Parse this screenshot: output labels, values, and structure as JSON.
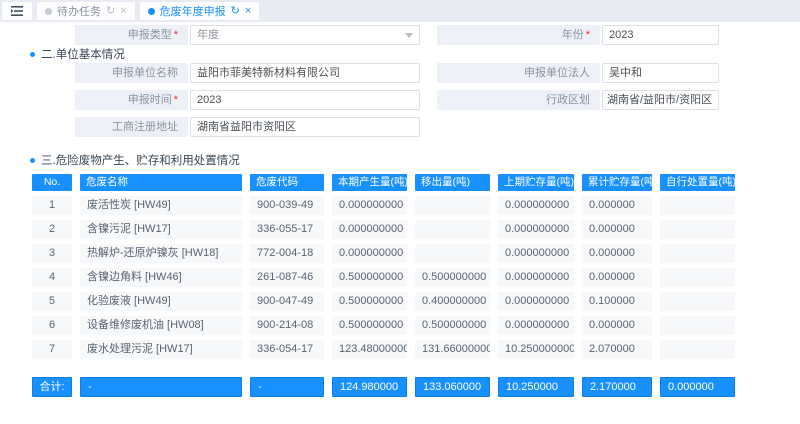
{
  "tabbar": {
    "menu_icon": "menu-fold-icon",
    "refresh_icon": "↻",
    "close_icon": "×",
    "tabs": [
      {
        "label": "待办任务",
        "active": false
      },
      {
        "label": "危废年度申报",
        "active": true
      }
    ]
  },
  "form": {
    "required_mark": "*",
    "declare_type": {
      "label": "申报类型",
      "value": "年度"
    },
    "year": {
      "label": "年份",
      "value": "2023"
    },
    "section2_title": "二.单位基本情况",
    "unit_name": {
      "label": "申报单位名称",
      "value": "益阳市菲美特新材料有限公司"
    },
    "legal_person": {
      "label": "申报单位法人",
      "value": "吴中和"
    },
    "declare_time": {
      "label": "申报时间",
      "value": "2023"
    },
    "admin_region": {
      "label": "行政区划",
      "value": "湖南省/益阳市/资阳区"
    },
    "registered_address": {
      "label": "工商注册地址",
      "value": "湖南省益阳市资阳区"
    },
    "section3_title": "三.危险废物产生、贮存和利用处置情况"
  },
  "table": {
    "columns": [
      "No.",
      "危废名称",
      "危废代码",
      "本期产生量(吨)",
      "移出量(吨)",
      "上期贮存量(吨)",
      "累计贮存量(吨)",
      "自行处置量(吨)"
    ],
    "rows": [
      [
        "1",
        "废活性炭 [HW49]",
        "900-039-49",
        "0.000000000",
        "",
        "0.000000000",
        "0.000000",
        ""
      ],
      [
        "2",
        "含镍污泥 [HW17]",
        "336-055-17",
        "0.000000000",
        "",
        "0.000000000",
        "0.000000",
        ""
      ],
      [
        "3",
        "热解炉-还原炉镍灰 [HW18]",
        "772-004-18",
        "0.000000000",
        "",
        "0.000000000",
        "0.000000",
        ""
      ],
      [
        "4",
        "含镍边角料 [HW46]",
        "261-087-46",
        "0.500000000",
        "0.500000000",
        "0.000000000",
        "0.000000",
        ""
      ],
      [
        "5",
        "化验废液 [HW49]",
        "900-047-49",
        "0.500000000",
        "0.400000000",
        "0.000000000",
        "0.100000",
        ""
      ],
      [
        "6",
        "设备维修废机油 [HW08]",
        "900-214-08",
        "0.500000000",
        "0.500000000",
        "0.000000000",
        "0.000000",
        ""
      ],
      [
        "7",
        "废水处理污泥 [HW17]",
        "336-054-17",
        "123.480000000",
        "131.660000000",
        "10.250000000",
        "2.070000",
        ""
      ]
    ],
    "total": [
      "合计:",
      "-",
      "-",
      "124.980000",
      "133.060000",
      "10.250000",
      "2.170000",
      "0.000000"
    ]
  },
  "colors": {
    "primary": "#1890ff",
    "header_bg": "#1890ff",
    "label_bg": "#edf0f6",
    "cell_bg": "#f7f8fa",
    "tabbar_bg": "#e8ebf1",
    "required": "#f5222d"
  }
}
